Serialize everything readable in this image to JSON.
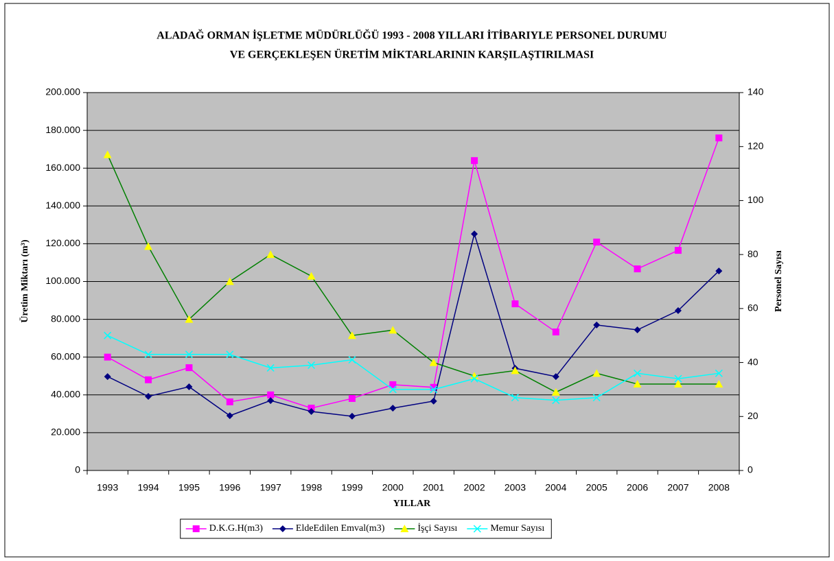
{
  "chart_data": {
    "type": "line",
    "title": [
      "ALADAĞ ORMAN İŞLETME MÜDÜRLÜĞÜ 1993 - 2008 YILLARI İTİBARIYLE PERSONEL DURUMU",
      "VE GERÇEKLEŞEN ÜRETİM MİKTARLARININ KARŞILAŞTIRILMASI"
    ],
    "x_label": "YILLAR",
    "y_label": "Üretim Miktarı (m³)",
    "y2_label": "Personel Sayısı",
    "categories": [
      "1993",
      "1994",
      "1995",
      "1996",
      "1997",
      "1998",
      "1999",
      "2000",
      "2001",
      "2002",
      "2003",
      "2004",
      "2005",
      "2006",
      "2007",
      "2008"
    ],
    "series": [
      {
        "name": "D.K.G.H(m3)",
        "color": "#ff00ff",
        "marker_color": "#ff00ff",
        "marker": "square",
        "values": [
          60000,
          48000,
          54400,
          36300,
          40000,
          33000,
          38100,
          45400,
          44000,
          164000,
          88200,
          73300,
          120900,
          106700,
          116500,
          176000
        ]
      },
      {
        "name": "EldeEdilen Emval(m3)",
        "color": "#000080",
        "marker_color": "#000080",
        "marker": "diamond",
        "values": [
          49700,
          39200,
          44300,
          29000,
          37000,
          31200,
          28700,
          33000,
          36700,
          125200,
          54100,
          49700,
          77000,
          74400,
          84600,
          105600
        ]
      },
      {
        "name": "İşçi Sayısı",
        "color": "#008000",
        "marker_color": "#ffff00",
        "marker": "triangle",
        "axis": "y2",
        "values": [
          117,
          83,
          56,
          70,
          80,
          72,
          50,
          52,
          40,
          35,
          37,
          29,
          36,
          32,
          32,
          32
        ]
      },
      {
        "name": "Memur Sayısı",
        "color": "#00ffff",
        "marker_color": "#00ffff",
        "marker": "cross",
        "axis": "y2",
        "values": [
          50,
          43,
          43,
          43,
          38,
          39,
          41,
          30,
          30,
          34,
          27,
          26,
          27,
          36,
          34,
          36
        ]
      }
    ],
    "ylim": [
      0,
      200000
    ],
    "yticks": [
      {
        "value": 0,
        "label": "0"
      },
      {
        "value": 20000,
        "label": "20.000"
      },
      {
        "value": 40000,
        "label": "40.000"
      },
      {
        "value": 60000,
        "label": "60.000"
      },
      {
        "value": 80000,
        "label": "80.000"
      },
      {
        "value": 100000,
        "label": "100.000"
      },
      {
        "value": 120000,
        "label": "120.000"
      },
      {
        "value": 140000,
        "label": "140.000"
      },
      {
        "value": 160000,
        "label": "160.000"
      },
      {
        "value": 180000,
        "label": "180.000"
      },
      {
        "value": 200000,
        "label": "200.000"
      }
    ],
    "y2lim": [
      0,
      140
    ],
    "y2ticks": [
      0,
      20,
      40,
      60,
      80,
      100,
      120,
      140
    ],
    "grid": true,
    "plot_background": "#c0c0c0",
    "legend": "bottom"
  }
}
